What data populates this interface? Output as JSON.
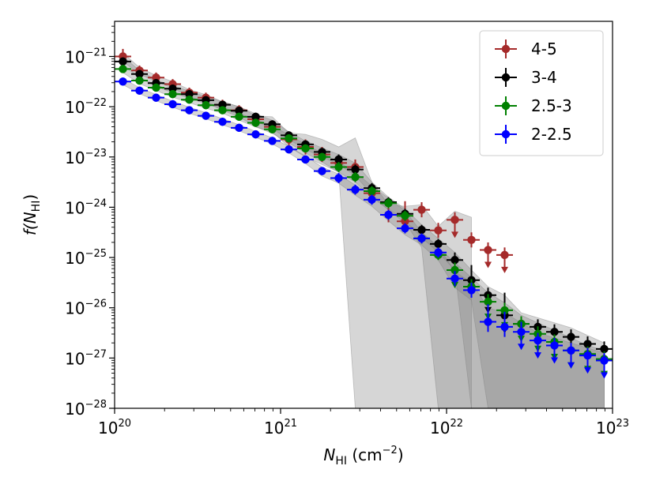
{
  "chart_data": {
    "type": "scatter",
    "title": "",
    "xlabel": {
      "main": "N",
      "sub": "HI",
      "unit_pre": " (cm",
      "unit_exp": "−2",
      "unit_post": ")"
    },
    "ylabel": {
      "pre": "f(",
      "main": "N",
      "sub": "HI",
      "post": ")"
    },
    "xscale": "log",
    "yscale": "log",
    "xlim": [
      1e+20,
      1e+23
    ],
    "ylim": [
      1e-28,
      5e-21
    ],
    "x_ticks": [
      {
        "exp": 20,
        "base": "10",
        "sup": "20"
      },
      {
        "exp": 21,
        "base": "10",
        "sup": "21"
      },
      {
        "exp": 22,
        "base": "10",
        "sup": "22"
      },
      {
        "exp": 23,
        "base": "10",
        "sup": "23"
      }
    ],
    "y_ticks": [
      {
        "exp": -28,
        "base": "10",
        "sup": "−28"
      },
      {
        "exp": -27,
        "base": "10",
        "sup": "−27"
      },
      {
        "exp": -26,
        "base": "10",
        "sup": "−26"
      },
      {
        "exp": -25,
        "base": "10",
        "sup": "−25"
      },
      {
        "exp": -24,
        "base": "10",
        "sup": "−24"
      },
      {
        "exp": -23,
        "base": "10",
        "sup": "−23"
      },
      {
        "exp": -22,
        "base": "10",
        "sup": "−22"
      },
      {
        "exp": -21,
        "base": "10",
        "sup": "−21"
      }
    ],
    "legend_position": "top-right",
    "series": [
      {
        "name": "4-5",
        "color": "#a52a2a",
        "x": [
          20.05,
          20.15,
          20.25,
          20.35,
          20.45,
          20.55,
          20.65,
          20.75,
          20.85,
          20.95,
          21.05,
          21.15,
          21.25,
          21.35,
          21.45,
          21.55,
          21.65,
          21.75,
          21.85,
          21.95,
          22.05,
          22.15,
          22.25,
          22.35
        ],
        "y": [
          -21.0,
          -21.28,
          -21.42,
          -21.55,
          -21.72,
          -21.82,
          -21.96,
          -22.07,
          -22.25,
          -22.4,
          -22.65,
          -22.8,
          -22.95,
          -23.12,
          -23.2,
          -23.72,
          -24.15,
          -24.28,
          -24.05,
          -24.46,
          -24.25,
          -24.65,
          -24.85,
          -24.95
        ],
        "err_up": [
          0.15,
          0.1,
          0.1,
          0.1,
          0.1,
          0.1,
          0.1,
          0.1,
          0.1,
          0.1,
          0.15,
          0.15,
          0.15,
          0.15,
          0.15,
          0.15,
          0.15,
          0.4,
          0.15,
          0.15,
          0.15,
          0.15,
          0.15,
          0.15
        ],
        "err_dn": [
          0.15,
          0.1,
          0.1,
          0.1,
          0.1,
          0.1,
          0.1,
          0.1,
          0.1,
          0.1,
          0.15,
          0.15,
          0.15,
          0.15,
          0.15,
          0.15,
          0.15,
          0.2,
          0.15,
          0.15,
          0.15,
          0.15,
          0.15,
          0.15
        ],
        "upper_limit": [
          false,
          false,
          false,
          false,
          false,
          false,
          false,
          false,
          false,
          false,
          false,
          false,
          false,
          false,
          false,
          false,
          false,
          false,
          false,
          false,
          true,
          false,
          true,
          true
        ]
      },
      {
        "name": "3-4",
        "color": "#000000",
        "x": [
          20.05,
          20.15,
          20.25,
          20.35,
          20.45,
          20.55,
          20.65,
          20.75,
          20.85,
          20.95,
          21.05,
          21.15,
          21.25,
          21.35,
          21.45,
          21.55,
          21.65,
          21.75,
          21.85,
          21.95,
          22.05,
          22.15,
          22.25,
          22.35,
          22.45,
          22.55,
          22.65,
          22.75,
          22.85,
          22.95
        ],
        "y": [
          -21.1,
          -21.35,
          -21.53,
          -21.64,
          -21.75,
          -21.87,
          -21.96,
          -22.08,
          -22.2,
          -22.35,
          -22.57,
          -22.75,
          -22.9,
          -23.05,
          -23.25,
          -23.62,
          -23.9,
          -24.13,
          -24.45,
          -24.73,
          -25.05,
          -25.45,
          -25.75,
          -26.15,
          -26.32,
          -26.38,
          -26.48,
          -26.58,
          -26.72,
          -26.82
        ],
        "err_up": [
          0.08,
          0.08,
          0.08,
          0.08,
          0.08,
          0.08,
          0.08,
          0.08,
          0.08,
          0.08,
          0.08,
          0.08,
          0.08,
          0.1,
          0.1,
          0.1,
          0.1,
          0.1,
          0.1,
          0.1,
          0.15,
          0.3,
          0.15,
          0.45,
          0.15,
          0.15,
          0.15,
          0.15,
          0.15,
          0.15
        ],
        "err_dn": [
          0.08,
          0.08,
          0.08,
          0.08,
          0.08,
          0.08,
          0.08,
          0.08,
          0.08,
          0.08,
          0.08,
          0.08,
          0.08,
          0.1,
          0.1,
          0.1,
          0.1,
          0.1,
          0.1,
          0.1,
          0.15,
          0.15,
          0.15,
          0.15,
          0.15,
          0.15,
          0.15,
          0.15,
          0.15,
          0.15
        ],
        "upper_limit": [
          false,
          false,
          false,
          false,
          false,
          false,
          false,
          false,
          false,
          false,
          false,
          false,
          false,
          false,
          false,
          false,
          false,
          false,
          false,
          false,
          false,
          false,
          true,
          true,
          false,
          false,
          false,
          false,
          false,
          false
        ]
      },
      {
        "name": "2.5-3",
        "color": "#008000",
        "x": [
          20.05,
          20.15,
          20.25,
          20.35,
          20.45,
          20.55,
          20.65,
          20.75,
          20.85,
          20.95,
          21.05,
          21.15,
          21.25,
          21.35,
          21.45,
          21.55,
          21.65,
          21.75,
          21.85,
          21.95,
          22.05,
          22.15,
          22.25,
          22.35,
          22.45,
          22.55,
          22.65,
          22.75,
          22.85,
          22.95
        ],
        "y": [
          -21.25,
          -21.48,
          -21.62,
          -21.75,
          -21.86,
          -21.97,
          -22.07,
          -22.2,
          -22.32,
          -22.45,
          -22.63,
          -22.83,
          -23.0,
          -23.2,
          -23.4,
          -23.68,
          -23.92,
          -24.17,
          -24.62,
          -24.95,
          -25.25,
          -25.58,
          -25.88,
          -26.05,
          -26.32,
          -26.52,
          -26.68,
          -26.85,
          -26.92,
          -27.02
        ],
        "err_up": [
          0.08,
          0.08,
          0.08,
          0.08,
          0.08,
          0.08,
          0.08,
          0.08,
          0.08,
          0.08,
          0.08,
          0.08,
          0.08,
          0.1,
          0.1,
          0.1,
          0.1,
          0.1,
          0.1,
          0.1,
          0.15,
          0.15,
          0.15,
          0.15,
          0.15,
          0.15,
          0.15,
          0.15,
          0.15,
          0.15
        ],
        "err_dn": [
          0.08,
          0.08,
          0.08,
          0.08,
          0.08,
          0.08,
          0.08,
          0.08,
          0.08,
          0.08,
          0.08,
          0.08,
          0.08,
          0.1,
          0.1,
          0.1,
          0.1,
          0.1,
          0.1,
          0.1,
          0.15,
          0.15,
          0.15,
          0.15,
          0.15,
          0.15,
          0.15,
          0.15,
          0.15,
          0.15
        ],
        "upper_limit": [
          false,
          false,
          false,
          false,
          false,
          false,
          false,
          false,
          false,
          false,
          false,
          false,
          false,
          false,
          false,
          false,
          false,
          false,
          false,
          false,
          true,
          false,
          true,
          true,
          true,
          true,
          true,
          true,
          true,
          true
        ]
      },
      {
        "name": "2-2.5",
        "color": "#0000ff",
        "x": [
          20.05,
          20.15,
          20.25,
          20.35,
          20.45,
          20.55,
          20.65,
          20.75,
          20.85,
          20.95,
          21.05,
          21.15,
          21.25,
          21.35,
          21.45,
          21.55,
          21.65,
          21.75,
          21.85,
          21.95,
          22.05,
          22.15,
          22.25,
          22.35,
          22.45,
          22.55,
          22.65,
          22.75,
          22.85,
          22.95
        ],
        "y": [
          -21.5,
          -21.68,
          -21.82,
          -21.95,
          -22.07,
          -22.18,
          -22.3,
          -22.42,
          -22.55,
          -22.68,
          -22.85,
          -23.05,
          -23.28,
          -23.42,
          -23.65,
          -23.85,
          -24.15,
          -24.42,
          -24.62,
          -24.9,
          -25.42,
          -25.65,
          -26.28,
          -26.38,
          -26.48,
          -26.65,
          -26.75,
          -26.85,
          -26.95,
          -27.05
        ],
        "err_up": [
          0.08,
          0.08,
          0.08,
          0.08,
          0.08,
          0.08,
          0.08,
          0.08,
          0.08,
          0.08,
          0.08,
          0.08,
          0.08,
          0.1,
          0.1,
          0.1,
          0.1,
          0.1,
          0.1,
          0.1,
          0.15,
          0.15,
          0.35,
          0.3,
          0.2,
          0.15,
          0.15,
          0.15,
          0.15,
          0.15
        ],
        "err_dn": [
          0.08,
          0.08,
          0.08,
          0.08,
          0.08,
          0.08,
          0.08,
          0.08,
          0.08,
          0.08,
          0.08,
          0.08,
          0.08,
          0.1,
          0.1,
          0.1,
          0.1,
          0.1,
          0.1,
          0.1,
          0.15,
          0.15,
          0.2,
          0.2,
          0.2,
          0.15,
          0.15,
          0.15,
          0.15,
          0.15
        ],
        "upper_limit": [
          false,
          false,
          false,
          false,
          false,
          false,
          false,
          false,
          false,
          false,
          false,
          false,
          false,
          false,
          false,
          false,
          false,
          false,
          false,
          false,
          false,
          false,
          false,
          false,
          true,
          true,
          true,
          true,
          true,
          true
        ]
      }
    ],
    "bands": [
      {
        "name": "4-5-band",
        "x": [
          20.05,
          20.15,
          20.25,
          20.35,
          20.45,
          20.55,
          20.65,
          20.75,
          20.85,
          20.95,
          21.05,
          21.15,
          21.25,
          21.35,
          21.45,
          21.55,
          21.65,
          21.75,
          21.85,
          21.95,
          22.05,
          22.15
        ],
        "up": [
          -20.93,
          -21.22,
          -21.38,
          -21.5,
          -21.66,
          -21.76,
          -21.9,
          -22.0,
          -22.18,
          -22.2,
          -22.52,
          -22.55,
          -22.65,
          -22.8,
          -22.62,
          -23.5,
          -23.95,
          -23.98,
          -23.95,
          -24.38,
          -24.08,
          -24.2
        ],
        "dn": [
          -21.1,
          -21.35,
          -21.5,
          -21.63,
          -21.8,
          -21.92,
          -22.07,
          -22.2,
          -22.4,
          -22.5,
          -22.8,
          -23.0,
          -23.15,
          -23.3,
          -28,
          -28,
          -28,
          -28,
          -28,
          -28,
          -28,
          -28
        ]
      },
      {
        "name": "3-4-band",
        "x": [
          20.05,
          20.15,
          20.25,
          20.35,
          20.45,
          20.55,
          20.65,
          20.75,
          20.85,
          20.95,
          21.05,
          21.15,
          21.25,
          21.35,
          21.45,
          21.55,
          21.65,
          21.75,
          21.85,
          21.95,
          22.05,
          22.15,
          22.25,
          22.35,
          22.45,
          22.55,
          22.65,
          22.75,
          22.85,
          22.95
        ],
        "up": [
          -21.0,
          -21.28,
          -21.47,
          -21.58,
          -21.69,
          -21.8,
          -21.9,
          -22.0,
          -22.14,
          -22.27,
          -22.5,
          -22.68,
          -22.82,
          -22.95,
          -23.12,
          -23.5,
          -23.8,
          -24.03,
          -24.35,
          -24.62,
          -24.9,
          -25.25,
          -25.58,
          -25.75,
          -26.1,
          -26.2,
          -26.3,
          -26.4,
          -26.55,
          -26.7
        ],
        "dn": [
          -21.15,
          -21.42,
          -21.6,
          -21.72,
          -21.83,
          -21.94,
          -22.04,
          -22.15,
          -22.28,
          -22.44,
          -22.65,
          -22.85,
          -23.0,
          -23.15,
          -23.37,
          -23.75,
          -24.03,
          -24.27,
          -24.6,
          -24.9,
          -25.25,
          -28,
          -28,
          -28,
          -28,
          -28,
          -28,
          -28,
          -28,
          -28
        ]
      },
      {
        "name": "2.5-3-band",
        "x": [
          20.05,
          20.15,
          20.25,
          20.35,
          20.45,
          20.55,
          20.65,
          20.75,
          20.85,
          20.95,
          21.05,
          21.15,
          21.25,
          21.35,
          21.45,
          21.55,
          21.65,
          21.75,
          21.85,
          21.95,
          22.05,
          22.15,
          22.25,
          22.35,
          22.45,
          22.55,
          22.65,
          22.75,
          22.85,
          22.95
        ],
        "up": [
          -21.18,
          -21.42,
          -21.56,
          -21.69,
          -21.8,
          -21.91,
          -22.01,
          -22.13,
          -22.25,
          -22.38,
          -22.56,
          -22.75,
          -22.92,
          -23.1,
          -23.3,
          -23.58,
          -23.82,
          -24.07,
          -24.5,
          -24.8,
          -25.1,
          -25.4,
          -25.7,
          -25.9,
          -26.15,
          -26.3,
          -26.45,
          -26.6,
          -26.75,
          -26.85
        ],
        "dn": [
          -21.32,
          -21.54,
          -21.68,
          -21.81,
          -21.92,
          -22.03,
          -22.13,
          -22.27,
          -22.4,
          -22.53,
          -22.72,
          -22.92,
          -23.1,
          -23.3,
          -23.5,
          -23.8,
          -24.05,
          -24.3,
          -24.8,
          -28,
          -28,
          -28,
          -28,
          -28,
          -28,
          -28,
          -28,
          -28,
          -28,
          -28
        ]
      },
      {
        "name": "2-2.5-band",
        "x": [
          20.05,
          20.15,
          20.25,
          20.35,
          20.45,
          20.55,
          20.65,
          20.75,
          20.85,
          20.95,
          21.05,
          21.15,
          21.25,
          21.35,
          21.45,
          21.55,
          21.65,
          21.75,
          21.85,
          21.95,
          22.05,
          22.15,
          22.25,
          22.35,
          22.45,
          22.55,
          22.65,
          22.75,
          22.85,
          22.95
        ],
        "up": [
          -21.44,
          -21.62,
          -21.76,
          -21.89,
          -22.01,
          -22.12,
          -22.24,
          -22.36,
          -22.49,
          -22.62,
          -22.79,
          -22.98,
          -23.2,
          -23.34,
          -23.56,
          -23.76,
          -24.05,
          -24.32,
          -24.5,
          -24.78,
          -25.28,
          -25.5,
          -26.0,
          -26.1,
          -26.3,
          -26.5,
          -26.6,
          -26.7,
          -26.8,
          -26.9
        ],
        "dn": [
          -21.56,
          -21.74,
          -21.88,
          -22.01,
          -22.13,
          -22.24,
          -22.36,
          -22.48,
          -22.61,
          -22.74,
          -22.92,
          -23.13,
          -23.38,
          -23.52,
          -23.76,
          -23.98,
          -24.27,
          -24.55,
          -24.75,
          -25.05,
          -25.6,
          -25.85,
          -28,
          -28,
          -28,
          -28,
          -28,
          -28,
          -28,
          -28
        ]
      }
    ]
  }
}
